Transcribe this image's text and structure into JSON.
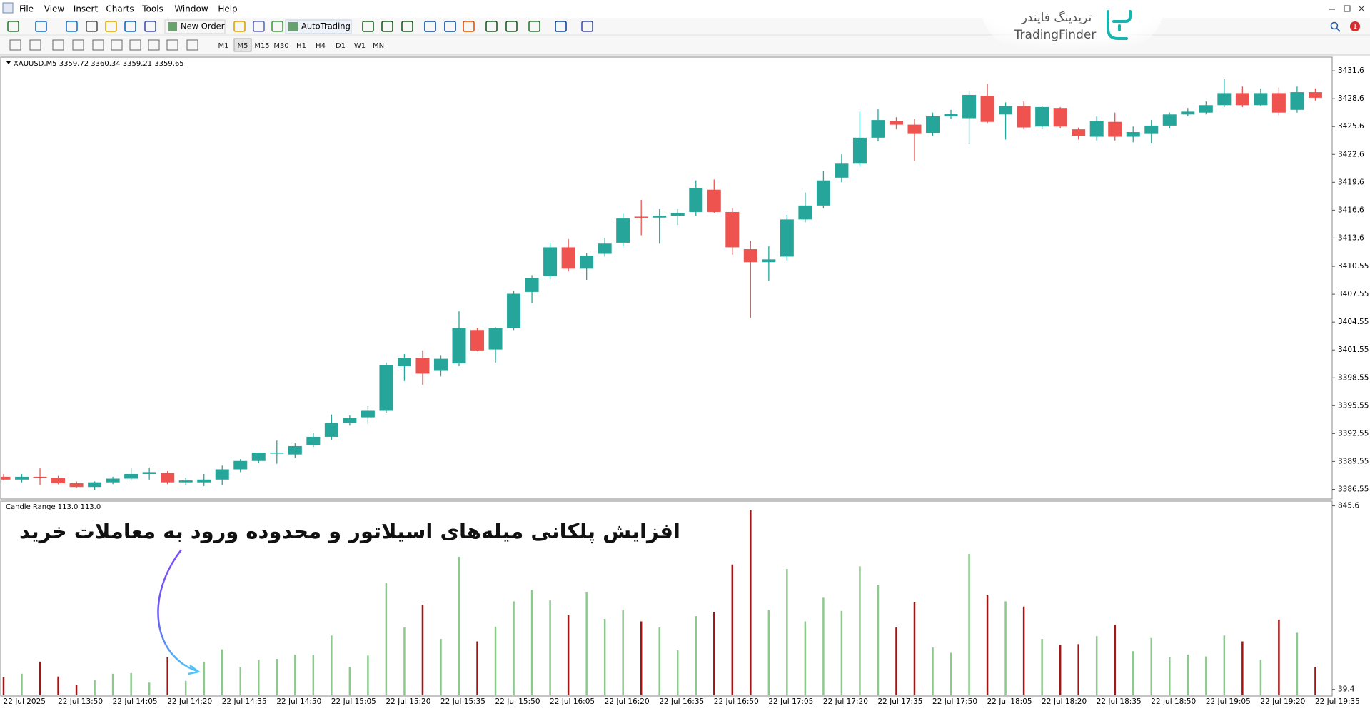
{
  "ui": {
    "menu": [
      "File",
      "View",
      "Insert",
      "Charts",
      "Tools",
      "Window",
      "Help"
    ],
    "toolbar": [
      "New Order",
      "AutoTrading"
    ],
    "timeframes": [
      "M1",
      "M5",
      "M15",
      "M30",
      "H1",
      "H4",
      "D1",
      "W1",
      "MN"
    ],
    "notifications": 1,
    "logo": {
      "native": "تریدینگ فایندر",
      "latin": "TradingFinder"
    },
    "annotation": "افزایش پلکانی میله‌های اسیلاتور و محدوده ورود به معاملات خرید"
  },
  "chart_data": [
    {
      "type": "candlestick",
      "title": "XAUUSD,M5  3359.72 3360.34 3359.21 3359.65",
      "up_color": "#26a69a",
      "down_color": "#ef5350",
      "open": [
        3387.9,
        3387.6,
        3387.9,
        3387.8,
        3387.2,
        3386.8,
        3387.3,
        3387.7,
        3388.2,
        3388.3,
        3387.3,
        3387.3,
        3387.6,
        3388.7,
        3389.6,
        3390.4,
        3390.3,
        3391.3,
        3392.2,
        3393.7,
        3394.3,
        3395.0,
        3399.8,
        3400.7,
        3399.3,
        3400.1,
        3403.7,
        3401.6,
        3403.9,
        3407.8,
        3409.5,
        3412.6,
        3410.3,
        3411.9,
        3413.1,
        3415.9,
        3415.8,
        3416.0,
        3416.4,
        3418.8,
        3416.4,
        3412.4,
        3411.0,
        3411.6,
        3415.6,
        3417.1,
        3420.1,
        3421.6,
        3424.4,
        3426.2,
        3425.8,
        3424.9,
        3426.7,
        3426.5,
        3428.9,
        3426.9,
        3427.8,
        3425.6,
        3427.6,
        3425.3,
        3424.5,
        3426.1,
        3424.5,
        3424.8,
        3425.7,
        3426.9,
        3427.1,
        3427.9,
        3429.2,
        3427.9,
        3429.2,
        3427.4,
        3429.3,
        null
      ],
      "high": [
        3388.2,
        3388.2,
        3388.8,
        3388.0,
        3387.4,
        3387.4,
        3387.9,
        3388.8,
        3388.9,
        3388.5,
        3387.8,
        3388.2,
        3389.1,
        3389.8,
        3390.5,
        3391.8,
        3391.5,
        3392.6,
        3394.6,
        3394.5,
        3395.5,
        3400.2,
        3401.1,
        3401.5,
        3401.0,
        3405.7,
        3403.9,
        3404.0,
        3407.9,
        3409.6,
        3413.1,
        3413.5,
        3412.0,
        3413.6,
        3416.2,
        3417.7,
        3416.7,
        3416.7,
        3419.8,
        3419.9,
        3416.8,
        3413.3,
        3412.7,
        3416.1,
        3418.5,
        3420.8,
        3422.6,
        3427.2,
        3427.5,
        3426.6,
        3426.4,
        3427.1,
        3427.4,
        3429.4,
        3430.2,
        3428.2,
        3428.3,
        3427.8,
        3427.7,
        3425.5,
        3426.7,
        3427.1,
        3425.6,
        3426.3,
        3427.1,
        3427.6,
        3428.3,
        3430.7,
        3429.9,
        3429.7,
        3429.8,
        3429.9,
        3429.7,
        null
      ],
      "low": [
        3387.5,
        3387.3,
        3387.0,
        3387.1,
        3386.7,
        3386.5,
        3387.1,
        3387.5,
        3387.6,
        3387.1,
        3387.0,
        3386.9,
        3387.0,
        3388.4,
        3389.4,
        3389.3,
        3389.9,
        3391.1,
        3391.9,
        3393.4,
        3393.6,
        3394.8,
        3398.2,
        3397.8,
        3398.7,
        3399.8,
        3401.4,
        3400.2,
        3403.7,
        3406.6,
        3409.2,
        3410.0,
        3409.1,
        3411.6,
        3412.7,
        3413.9,
        3413.0,
        3415.0,
        3416.0,
        3416.3,
        3411.8,
        3405.0,
        3409.0,
        3411.2,
        3415.3,
        3416.8,
        3419.6,
        3421.3,
        3424.0,
        3425.3,
        3421.9,
        3424.6,
        3426.4,
        3423.7,
        3425.9,
        3424.2,
        3425.3,
        3425.3,
        3425.4,
        3424.2,
        3424.1,
        3424.1,
        3423.9,
        3423.8,
        3425.4,
        3426.7,
        3426.9,
        3427.7,
        3427.7,
        3427.8,
        3426.8,
        3427.1,
        3428.4,
        null
      ],
      "close": [
        3387.6,
        3387.9,
        3387.8,
        3387.2,
        3386.8,
        3387.3,
        3387.7,
        3388.2,
        3388.4,
        3387.3,
        3387.5,
        3387.6,
        3388.7,
        3389.6,
        3390.5,
        3390.5,
        3391.2,
        3392.2,
        3393.7,
        3394.2,
        3395.0,
        3399.9,
        3400.7,
        3399.0,
        3400.6,
        3403.9,
        3401.5,
        3403.9,
        3407.6,
        3409.3,
        3412.6,
        3410.3,
        3411.7,
        3413.0,
        3415.7,
        3415.8,
        3416.0,
        3416.3,
        3419.0,
        3416.4,
        3412.6,
        3411.0,
        3411.3,
        3415.6,
        3417.1,
        3419.8,
        3421.6,
        3424.4,
        3426.3,
        3425.8,
        3424.8,
        3426.7,
        3427.0,
        3429.0,
        3426.1,
        3427.8,
        3425.5,
        3427.7,
        3425.6,
        3424.6,
        3426.2,
        3424.5,
        3425.0,
        3425.7,
        3426.9,
        3427.2,
        3427.9,
        3429.2,
        3427.9,
        3429.2,
        3427.1,
        3429.3,
        3428.7,
        null
      ],
      "ylim": [
        3385.51,
        3433.07
      ],
      "yticks": [
        3386.55,
        3389.55,
        3392.55,
        3395.55,
        3398.55,
        3401.55,
        3404.55,
        3407.55,
        3410.55,
        3413.6,
        3416.6,
        3419.6,
        3422.6,
        3425.6,
        3428.6,
        3431.6
      ]
    },
    {
      "type": "bar",
      "title": "Candle Range 113.0 113.0",
      "up_color": "#8cc98c",
      "down_color": "#a31515",
      "categories": [
        null,
        "22 Jul 2025",
        null,
        null,
        "22 Jul 13:50",
        null,
        null,
        "22 Jul 14:05",
        null,
        null,
        "22 Jul 14:20",
        null,
        null,
        "22 Jul 14:35",
        null,
        null,
        "22 Jul 14:50",
        null,
        null,
        "22 Jul 15:05",
        null,
        null,
        "22 Jul 15:20",
        null,
        null,
        "22 Jul 15:35",
        null,
        null,
        "22 Jul 15:50",
        null,
        null,
        "22 Jul 16:05",
        null,
        null,
        "22 Jul 16:20",
        null,
        null,
        "22 Jul 16:35",
        null,
        null,
        "22 Jul 16:50",
        null,
        null,
        "22 Jul 17:05",
        null,
        null,
        "22 Jul 17:20",
        null,
        null,
        "22 Jul 17:35",
        null,
        null,
        "22 Jul 17:50",
        null,
        null,
        "22 Jul 18:05",
        null,
        null,
        "22 Jul 18:20",
        null,
        null,
        "22 Jul 18:35",
        null,
        null,
        "22 Jul 18:50",
        null,
        null,
        "22 Jul 19:05",
        null,
        null,
        "22 Jul 19:20",
        null,
        null,
        "22 Jul 19:35"
      ],
      "values": [
        92,
        108,
        161,
        96,
        58,
        81,
        108,
        111,
        69,
        180,
        77,
        161,
        215,
        138,
        169,
        173,
        192,
        192,
        276,
        138,
        188,
        507,
        311,
        411,
        261,
        622,
        250,
        315,
        426,
        476,
        430,
        365,
        468,
        349,
        388,
        338,
        311,
        211,
        361,
        380,
        588,
        826,
        388,
        568,
        338,
        442,
        384,
        580,
        499,
        311,
        422,
        223,
        200,
        634,
        453,
        426,
        403,
        261,
        234,
        238,
        273,
        323,
        207,
        265,
        180,
        192,
        184,
        276,
        250,
        169,
        346,
        288,
        138,
        null
      ],
      "ylim": [
        10.2,
        866.3
      ],
      "yticks": [
        39.4,
        845.6
      ]
    }
  ]
}
